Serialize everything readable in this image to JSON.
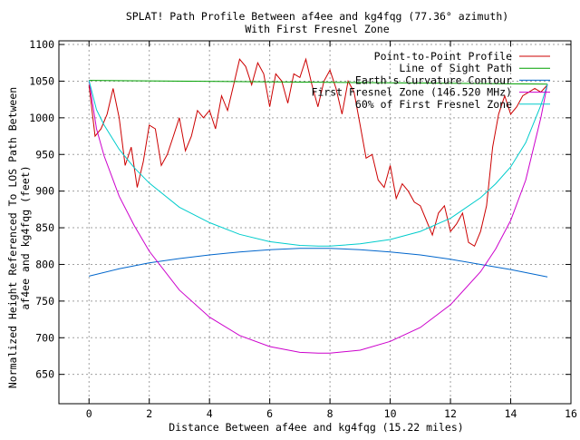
{
  "chart_data": {
    "type": "line",
    "title": "SPLAT! Path Profile Between af4ee and kg4fqg (77.36° azimuth)",
    "subtitle": "With First Fresnel Zone",
    "xlabel": "Distance Between af4ee and kg4fqg (15.22 miles)",
    "ylabel_lines": [
      "Normalized Height Referenced To LOS Path Between",
      "af4ee and kg4fqg (feet)"
    ],
    "xlim": [
      -1,
      16
    ],
    "ylim": [
      610,
      1105
    ],
    "xticks": [
      0,
      2,
      4,
      6,
      8,
      10,
      12,
      14,
      16
    ],
    "yticks": [
      650,
      700,
      750,
      800,
      850,
      900,
      950,
      1000,
      1050,
      1100
    ],
    "grid": true,
    "legend_position": "top-right",
    "series": [
      {
        "name": "Point-to-Point Profile",
        "color": "#cc0000",
        "x": [
          0,
          0.2,
          0.4,
          0.6,
          0.8,
          1.0,
          1.2,
          1.4,
          1.6,
          1.8,
          2.0,
          2.2,
          2.4,
          2.6,
          2.8,
          3.0,
          3.2,
          3.4,
          3.6,
          3.8,
          4.0,
          4.2,
          4.4,
          4.6,
          4.8,
          5.0,
          5.2,
          5.4,
          5.6,
          5.8,
          6.0,
          6.2,
          6.4,
          6.6,
          6.8,
          7.0,
          7.2,
          7.4,
          7.6,
          7.8,
          8.0,
          8.2,
          8.4,
          8.6,
          8.8,
          9.0,
          9.2,
          9.4,
          9.6,
          9.8,
          10.0,
          10.2,
          10.4,
          10.6,
          10.8,
          11.0,
          11.2,
          11.4,
          11.6,
          11.8,
          12.0,
          12.2,
          12.4,
          12.6,
          12.8,
          13.0,
          13.2,
          13.4,
          13.6,
          13.8,
          14.0,
          14.2,
          14.4,
          14.6,
          14.8,
          15.0,
          15.22
        ],
        "values": [
          1045,
          975,
          985,
          1005,
          1040,
          1000,
          935,
          960,
          905,
          940,
          990,
          985,
          935,
          950,
          975,
          1000,
          955,
          975,
          1010,
          1000,
          1010,
          985,
          1030,
          1010,
          1045,
          1080,
          1070,
          1045,
          1075,
          1060,
          1015,
          1060,
          1050,
          1020,
          1060,
          1055,
          1080,
          1045,
          1015,
          1050,
          1065,
          1040,
          1005,
          1050,
          1035,
          990,
          945,
          950,
          915,
          905,
          935,
          890,
          910,
          900,
          885,
          880,
          860,
          840,
          870,
          880,
          845,
          855,
          870,
          830,
          825,
          845,
          880,
          960,
          1005,
          1030,
          1005,
          1015,
          1030,
          1035,
          1040,
          1035,
          1045
        ]
      },
      {
        "name": "Line of Sight Path",
        "color": "#00a000",
        "x": [
          0,
          15.22
        ],
        "values": [
          1051,
          1046
        ]
      },
      {
        "name": "Earth's Curvature Contour",
        "color": "#0066cc",
        "x": [
          0,
          1,
          2,
          3,
          4,
          5,
          6,
          7,
          7.61,
          8,
          9,
          10,
          11,
          12,
          13,
          14,
          15.22
        ],
        "values": [
          784,
          794,
          802,
          808,
          813,
          817,
          820,
          822,
          822,
          822,
          820,
          817,
          813,
          807,
          800,
          793,
          783
        ]
      },
      {
        "name": "First Fresnel Zone (146.520 MHz)",
        "color": "#cc00cc",
        "x": [
          0,
          0.25,
          0.5,
          1,
          1.5,
          2,
          3,
          4,
          5,
          6,
          7,
          7.61,
          8,
          9,
          10,
          11,
          12,
          13,
          13.5,
          14,
          14.5,
          15,
          15.22
        ],
        "values": [
          1051,
          985,
          948,
          893,
          853,
          818,
          765,
          728,
          703,
          688,
          680,
          679,
          679,
          683,
          695,
          714,
          745,
          790,
          821,
          860,
          915,
          1000,
          1046
        ]
      },
      {
        "name": "60% of First Fresnel Zone",
        "color": "#00cccc",
        "x": [
          0,
          0.25,
          0.5,
          1,
          1.5,
          2,
          3,
          4,
          5,
          6,
          7,
          7.61,
          8,
          9,
          10,
          11,
          12,
          13,
          13.5,
          14,
          14.5,
          15,
          15.22
        ],
        "values": [
          1051,
          1011,
          990,
          957,
          932,
          911,
          878,
          857,
          841,
          831,
          826,
          825,
          825,
          828,
          834,
          845,
          863,
          891,
          910,
          933,
          966,
          1017,
          1046
        ]
      }
    ]
  }
}
